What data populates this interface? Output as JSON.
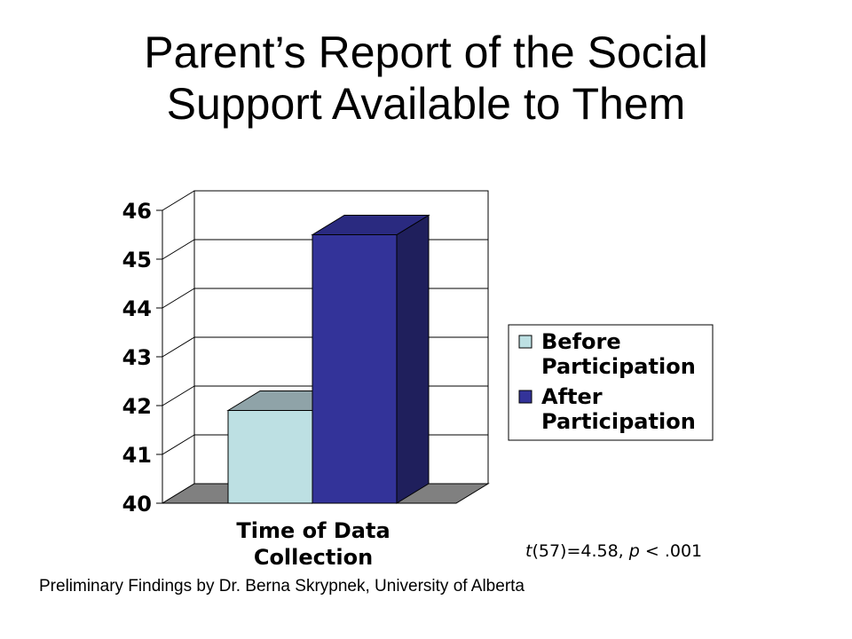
{
  "title_lines": [
    "Parent’s Report of the Social",
    "Support Available to Them"
  ],
  "chart_data": {
    "type": "bar",
    "style": "3d",
    "categories": [
      "Time of Data Collection"
    ],
    "xlabel_lines": [
      "Time of Data",
      "Collection"
    ],
    "series": [
      {
        "name": "Before Participation",
        "name_lines": [
          "Before",
          "Participation"
        ],
        "values": [
          41.9
        ],
        "color": "#BDE0E3"
      },
      {
        "name": "After Participation",
        "name_lines": [
          "After",
          "Participation"
        ],
        "values": [
          45.5
        ],
        "color": "#333399"
      }
    ],
    "ylim": [
      40,
      46
    ],
    "yticks": [
      "40",
      "41",
      "42",
      "43",
      "44",
      "45",
      "46"
    ],
    "grid": true,
    "legend": "right",
    "colors": {
      "floor": "#808080",
      "bar_before_top": "#8FA3A8",
      "bar_after_side": "#1F1F5C"
    }
  },
  "stat": {
    "t_label": "t",
    "t_value": "(57)=4.58, ",
    "p_label": "p",
    "p_value": " < .001"
  },
  "footer": "Preliminary Findings by Dr. Berna Skrypnek, University of Alberta"
}
